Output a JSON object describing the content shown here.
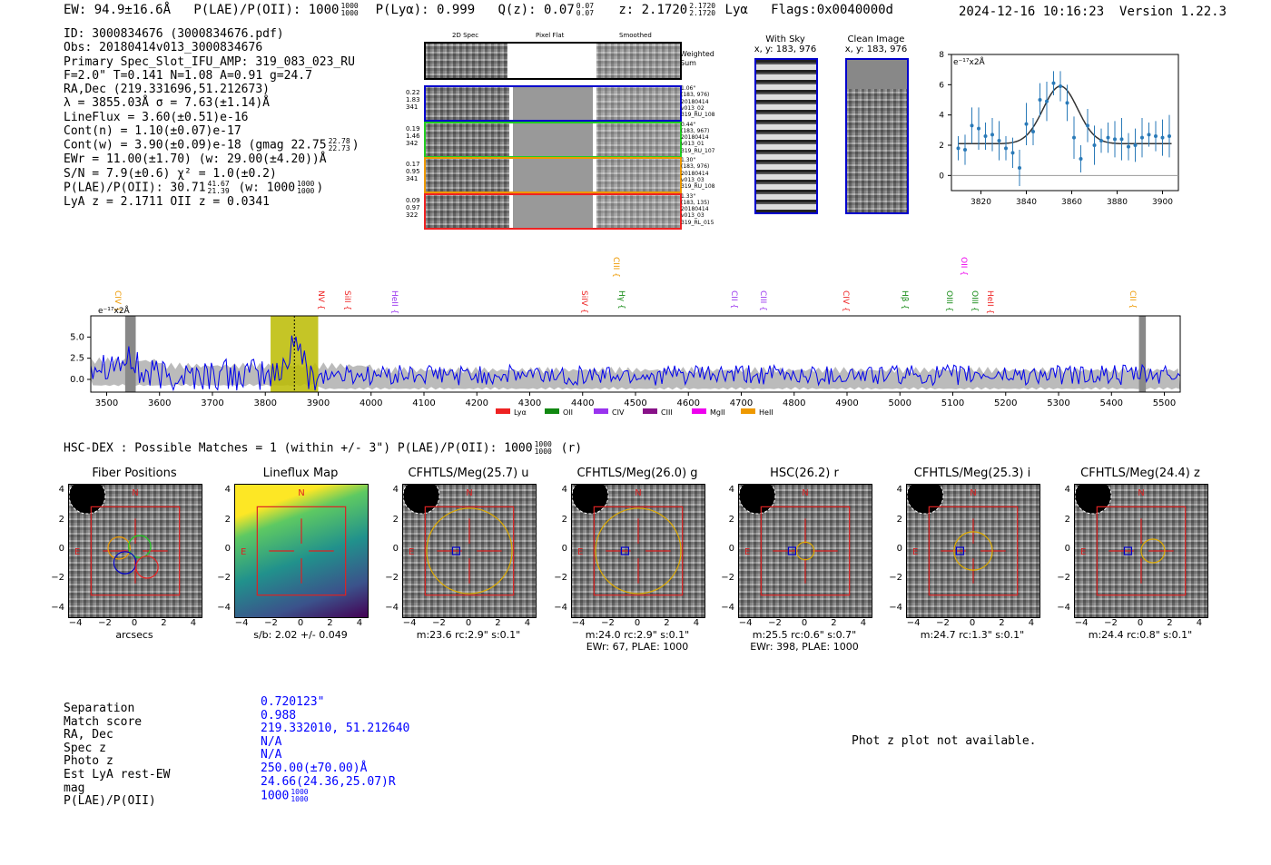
{
  "header": {
    "ew": "EW: 94.9±16.6Å",
    "plae_label": "P(LAE)/P(OII): 1000",
    "plae_hi": "1000",
    "plae_lo": "1000",
    "plya": "P(Lyα): 0.999",
    "qz_label": "Q(z): 0.07",
    "qz_hi": "0.07",
    "qz_lo": "0.07",
    "z_label": "z: 2.1720",
    "z_hi": "2.1720",
    "z_lo": "2.1720",
    "z_line": "Lyα",
    "flags": "Flags:0x0040000d",
    "datetime": "2024-12-16 10:16:23",
    "version": "Version 1.22.3"
  },
  "info": {
    "id": "ID: 3000834676 (3000834676.pdf)",
    "obs": "Obs: 20180414v013_3000834676",
    "slot": "Primary Spec_Slot_IFU_AMP: 319_083_023_RU",
    "fparams": "F=2.0\"  T=0.141  N=1.08  A=0.91  g=24.7",
    "radec": "RA,Dec (219.331696,51.212673)",
    "lambda": "λ = 3855.03Å  σ = 7.63(±1.14)Å",
    "lineflux": "LineFlux = 3.60(±0.51)e-16",
    "contn": "Cont(n) = 1.10(±0.07)e-17",
    "contw": "Cont(w) = 3.90(±0.09)e-18 (gmag 22.75",
    "contw_hi": "22.78",
    "contw_lo": "22.73",
    "contw_end": ")",
    "ewr": "EWr = 11.00(±1.70) (w: 29.00(±4.20))Å",
    "sn": "S/N = 7.9(±0.6)  χ² = 1.0(±0.2)",
    "plae": "P(LAE)/P(OII): 30.71",
    "plae_hi": "41.67",
    "plae_lo": "21.39",
    "plae_w": "(w: 1000",
    "plae_w_hi": "1000",
    "plae_w_lo": "1000",
    "plae_w_end": ")",
    "lyaz": "LyA z = 2.1711   OII z = 0.0341"
  },
  "cutouts": {
    "col_2d": "2D Spec",
    "col_flat": "Pixel Flat",
    "col_smooth": "Smoothed",
    "weighted": "Weighted",
    "weighted2": "Sum",
    "fibers": [
      {
        "l1": "0.22",
        "l2": "1.83",
        "l3": "341",
        "r1": "1.06\"",
        "r2": "(183, 976)",
        "r3": "20180414",
        "r4": "v013_02",
        "r5": "319_RU_108",
        "color": "#0000cc"
      },
      {
        "l1": "0.19",
        "l2": "1.46",
        "l3": "342",
        "r1": "0.44\"",
        "r2": "(183, 967)",
        "r3": "20180414",
        "r4": "v013_01",
        "r5": "319_RU_107",
        "color": "#22cc22"
      },
      {
        "l1": "0.17",
        "l2": "0.95",
        "l3": "341",
        "r1": "1.30\"",
        "r2": "(183, 976)",
        "r3": "20180414",
        "r4": "v013_03",
        "r5": "319_RU_108",
        "color": "#ee9900"
      },
      {
        "l1": "0.09",
        "l2": "0.97",
        "l3": "322",
        "r1": "1.33\"",
        "r2": "(183, 135)",
        "r3": "20180414",
        "r4": "v013_03",
        "r5": "319_RL_015",
        "color": "#ee2222"
      }
    ],
    "with_sky": "With Sky",
    "with_sky_xy": "x, y: 183, 976",
    "clean": "Clean Image",
    "clean_xy": "x, y: 183, 976"
  },
  "zoom_chart": {
    "unit": "e⁻¹⁷x2Å",
    "x_ticks": [
      "3820",
      "3840",
      "3860",
      "3880",
      "3900"
    ],
    "y_ticks": [
      "0",
      "2",
      "4",
      "6",
      "8"
    ]
  },
  "spectrum": {
    "unit": "e⁻¹⁷x2Å",
    "x_ticks": [
      "3500",
      "3600",
      "3700",
      "3800",
      "3900",
      "4000",
      "4100",
      "4200",
      "4300",
      "4400",
      "4500",
      "4600",
      "4700",
      "4800",
      "4900",
      "5000",
      "5100",
      "5200",
      "5300",
      "5400",
      "5500"
    ],
    "y_ticks": [
      "0.0",
      "2.5",
      "5.0"
    ],
    "lines": [
      {
        "name": "CIV",
        "x": 3537,
        "color": "#ee9900",
        "row": 1
      },
      {
        "name": "NV",
        "x": 3921,
        "color": "#ee2222",
        "row": 1
      },
      {
        "name": "SiII",
        "x": 3972,
        "color": "#ee2222",
        "row": 1
      },
      {
        "name": "HeII",
        "x": 4060,
        "color": "#9933ee",
        "row": 1
      },
      {
        "name": "SiIV",
        "x": 4420,
        "color": "#ee2222",
        "row": 1
      },
      {
        "name": "CIII",
        "x": 4480,
        "color": "#ee9900",
        "row": 0
      },
      {
        "name": "Hγ",
        "x": 4490,
        "color": "#118811",
        "row": 1
      },
      {
        "name": "CII",
        "x": 4702,
        "color": "#9933ee",
        "row": 1
      },
      {
        "name": "CIII",
        "x": 4758,
        "color": "#9933ee",
        "row": 1
      },
      {
        "name": "CIV",
        "x": 4913,
        "color": "#ee2222",
        "row": 1
      },
      {
        "name": "Hβ",
        "x": 5025,
        "color": "#118811",
        "row": 1
      },
      {
        "name": "OII",
        "x": 5137,
        "color": "#ee00ee",
        "row": 0
      },
      {
        "name": "OIII",
        "x": 5110,
        "color": "#118811",
        "row": 1
      },
      {
        "name": "OIII",
        "x": 5158,
        "color": "#118811",
        "row": 1
      },
      {
        "name": "HeII",
        "x": 5187,
        "color": "#ee2222",
        "row": 1
      },
      {
        "name": "CII",
        "x": 5456,
        "color": "#ee9900",
        "row": 1
      }
    ],
    "legend": [
      {
        "name": "Lyα",
        "color": "#ee2222"
      },
      {
        "name": "OII",
        "color": "#118811"
      },
      {
        "name": "CIV",
        "color": "#9933ee"
      },
      {
        "name": "CIII",
        "color": "#881188"
      },
      {
        "name": "MgII",
        "color": "#ee00ee"
      },
      {
        "name": "HeII",
        "color": "#ee9900"
      }
    ]
  },
  "hsc": {
    "title": "HSC-DEX : Possible Matches = 1 (within +/- 3\")  P(LAE)/P(OII): 1000",
    "title_hi": "1000",
    "title_lo": "1000",
    "title_end": "(r)"
  },
  "panels": [
    {
      "title": "Fiber Positions",
      "cap1": "arcsecs",
      "cap2": ""
    },
    {
      "title": "Lineflux Map",
      "cap1": "s/b: 2.02 +/- 0.049",
      "cap2": ""
    },
    {
      "title": "CFHTLS/Meg(25.7) u",
      "cap1": "m:23.6 rc:2.9\"  s:0.1\"",
      "cap2": ""
    },
    {
      "title": "CFHTLS/Meg(26.0) g",
      "cap1": "m:24.0 rc:2.9\"  s:0.1\"",
      "cap2": "EWr: 67, PLAE: 1000"
    },
    {
      "title": "HSC(26.2) r",
      "cap1": "m:25.5  rc:0.6\"  s:0.7\"",
      "cap2": "EWr: 398, PLAE: 1000"
    },
    {
      "title": "CFHTLS/Meg(25.3) i",
      "cap1": "m:24.7 rc:1.3\"  s:0.1\"",
      "cap2": ""
    },
    {
      "title": "CFHTLS/Meg(24.4) z",
      "cap1": "m:24.4 rc:0.8\"  s:0.1\"",
      "cap2": ""
    }
  ],
  "panel_ticks": {
    "x": [
      "−4",
      "−2",
      "0",
      "2",
      "4"
    ],
    "y": [
      "4",
      "2",
      "0",
      "−2",
      "−4"
    ],
    "north": "N",
    "east": "E"
  },
  "match": {
    "labels": [
      "Separation",
      "Match score",
      "RA, Dec",
      "Spec z",
      "Photo z",
      "Est LyA rest-EW",
      "mag",
      "P(LAE)/P(OII)"
    ],
    "values": [
      "0.720123\"",
      "0.988",
      "219.332010, 51.212640",
      "N/A",
      "N/A",
      "250.00(±70.00)Å",
      "24.66(24.36,25.07)R",
      "1000"
    ],
    "plae_hi": "1000",
    "plae_lo": "1000",
    "photz_msg": "Phot z plot not available."
  },
  "chart_data": [
    {
      "type": "scatter",
      "title": "",
      "ylabel": "e⁻¹⁷x2Å",
      "xlim": [
        3807,
        3907
      ],
      "ylim": [
        -1,
        8
      ],
      "x": [
        3810,
        3813,
        3816,
        3819,
        3822,
        3825,
        3828,
        3831,
        3834,
        3837,
        3840,
        3843,
        3846,
        3849,
        3852,
        3855,
        3858,
        3861,
        3864,
        3867,
        3870,
        3873,
        3876,
        3879,
        3882,
        3885,
        3888,
        3891,
        3894,
        3897,
        3900,
        3903
      ],
      "values": [
        1.8,
        1.7,
        3.3,
        3.1,
        2.6,
        2.7,
        2.3,
        1.8,
        1.5,
        0.5,
        3.4,
        2.9,
        5.0,
        4.9,
        6.1,
        5.9,
        4.8,
        2.5,
        1.1,
        3.3,
        2.0,
        2.3,
        2.5,
        2.4,
        2.4,
        1.9,
        2.0,
        2.5,
        2.7,
        2.6,
        2.5,
        2.6
      ],
      "model_peak": 5.9,
      "model_center": 3855,
      "model_sigma": 7.6,
      "model_cont": 2.1
    },
    {
      "type": "line",
      "title": "",
      "ylabel": "e⁻¹⁷x2Å",
      "xlim": [
        3470,
        5530
      ],
      "ylim": [
        -1.5,
        7.5
      ],
      "highlight": [
        3810,
        3900
      ],
      "line_center": 3855
    }
  ]
}
